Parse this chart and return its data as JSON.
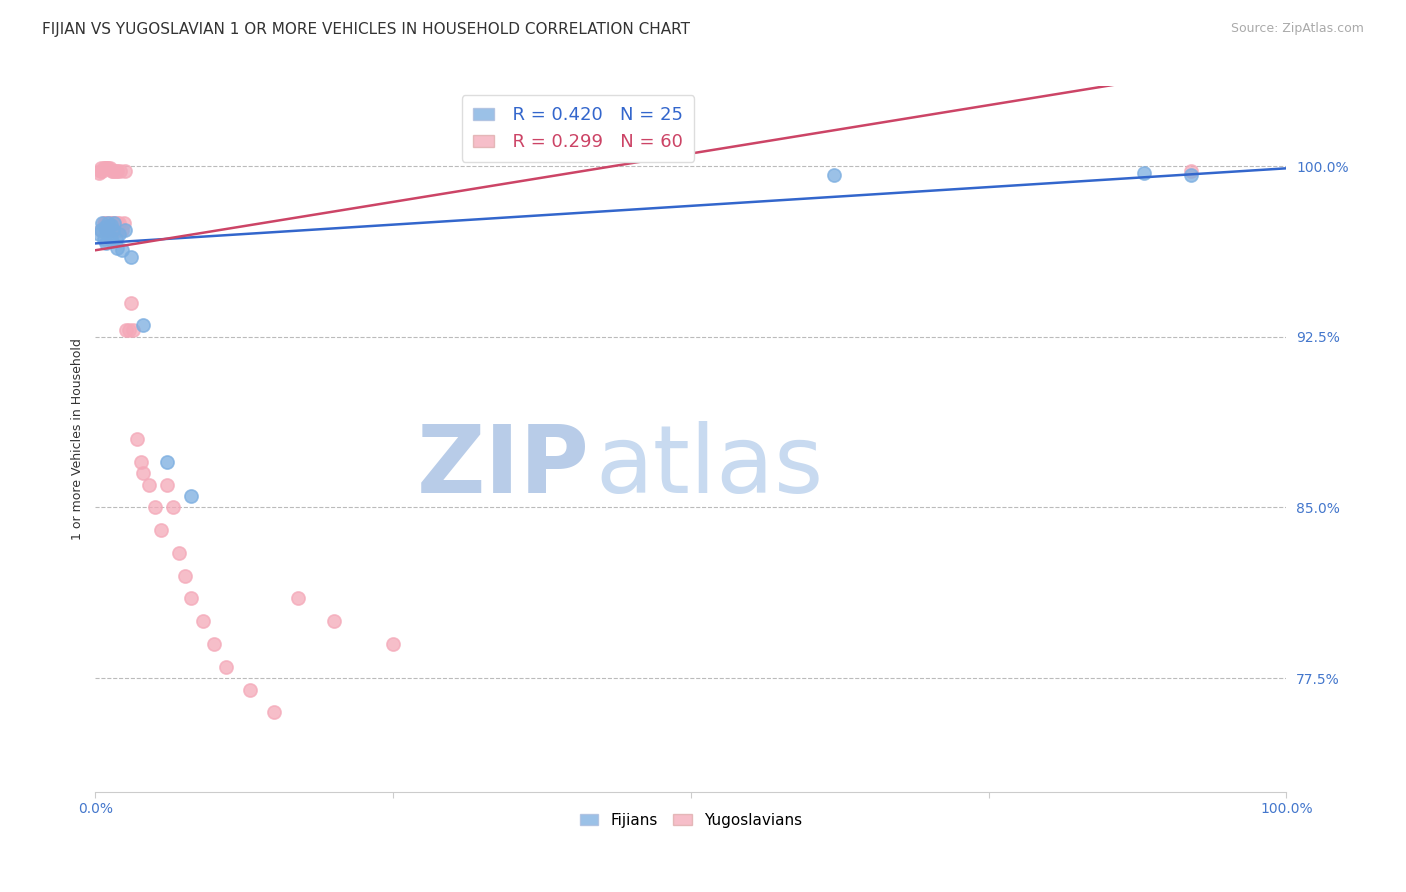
{
  "title": "FIJIAN VS YUGOSLAVIAN 1 OR MORE VEHICLES IN HOUSEHOLD CORRELATION CHART",
  "source": "Source: ZipAtlas.com",
  "ylabel": "1 or more Vehicles in Household",
  "ytick_labels": [
    "77.5%",
    "85.0%",
    "92.5%",
    "100.0%"
  ],
  "ytick_values": [
    0.775,
    0.85,
    0.925,
    1.0
  ],
  "xlim": [
    0.0,
    1.0
  ],
  "ylim": [
    0.725,
    1.035
  ],
  "fijian_color": "#7aade0",
  "yugoslav_color": "#f4a8b8",
  "fijian_line_color": "#3366cc",
  "yugoslav_line_color": "#cc4466",
  "legend_r_fijian": "R = 0.420",
  "legend_n_fijian": "N = 25",
  "legend_r_yugoslav": "R = 0.299",
  "legend_n_yugoslav": "N = 60",
  "fijian_x": [
    0.003,
    0.005,
    0.006,
    0.007,
    0.008,
    0.009,
    0.01,
    0.011,
    0.012,
    0.013,
    0.014,
    0.015,
    0.016,
    0.017,
    0.018,
    0.02,
    0.022,
    0.025,
    0.03,
    0.04,
    0.06,
    0.08,
    0.62,
    0.88,
    0.92
  ],
  "fijian_y": [
    0.97,
    0.972,
    0.975,
    0.968,
    0.973,
    0.966,
    0.971,
    0.975,
    0.969,
    0.974,
    0.967,
    0.972,
    0.975,
    0.968,
    0.964,
    0.97,
    0.963,
    0.972,
    0.96,
    0.93,
    0.87,
    0.855,
    0.996,
    0.997,
    0.996
  ],
  "yugoslav_x": [
    0.003,
    0.004,
    0.005,
    0.005,
    0.006,
    0.007,
    0.007,
    0.008,
    0.008,
    0.009,
    0.009,
    0.01,
    0.01,
    0.01,
    0.011,
    0.011,
    0.012,
    0.012,
    0.013,
    0.013,
    0.014,
    0.014,
    0.015,
    0.015,
    0.016,
    0.016,
    0.017,
    0.017,
    0.018,
    0.018,
    0.019,
    0.02,
    0.021,
    0.022,
    0.024,
    0.025,
    0.026,
    0.028,
    0.03,
    0.032,
    0.035,
    0.038,
    0.04,
    0.045,
    0.05,
    0.055,
    0.06,
    0.065,
    0.07,
    0.075,
    0.08,
    0.09,
    0.1,
    0.11,
    0.13,
    0.15,
    0.17,
    0.2,
    0.25,
    0.92
  ],
  "yugoslav_y": [
    0.997,
    0.998,
    0.999,
    0.972,
    0.998,
    0.975,
    0.999,
    0.975,
    0.999,
    0.972,
    0.999,
    0.975,
    0.999,
    0.972,
    0.999,
    0.972,
    0.975,
    0.999,
    0.972,
    0.975,
    0.998,
    0.972,
    0.975,
    0.998,
    0.972,
    0.975,
    0.998,
    0.972,
    0.975,
    0.998,
    0.972,
    0.975,
    0.998,
    0.972,
    0.975,
    0.998,
    0.928,
    0.928,
    0.94,
    0.928,
    0.88,
    0.87,
    0.865,
    0.86,
    0.85,
    0.84,
    0.86,
    0.85,
    0.83,
    0.82,
    0.81,
    0.8,
    0.79,
    0.78,
    0.77,
    0.76,
    0.81,
    0.8,
    0.79,
    0.998
  ],
  "watermark_zip": "ZIP",
  "watermark_atlas": "atlas",
  "watermark_color_zip": "#b8cce8",
  "watermark_color_atlas": "#c8daf0",
  "title_fontsize": 11,
  "source_fontsize": 9,
  "axis_label_fontsize": 9,
  "tick_fontsize": 10,
  "legend_fontsize": 13,
  "marker_size": 90,
  "title_color": "#333333",
  "tick_color": "#4477cc",
  "source_color": "#aaaaaa",
  "background_color": "#ffffff",
  "grid_color": "#bbbbbb",
  "regression_line_start_x": 0.0,
  "regression_line_end_x": 1.0
}
